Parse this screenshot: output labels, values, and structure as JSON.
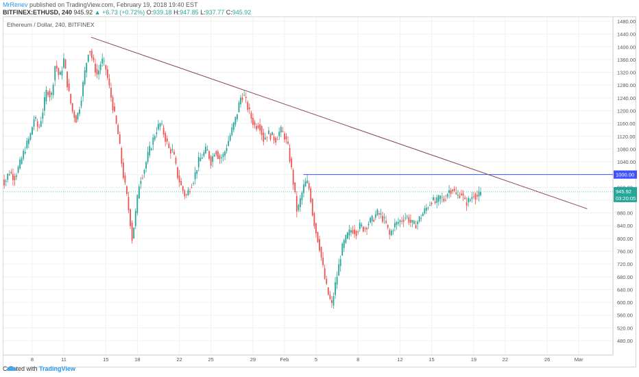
{
  "header": {
    "author": "MrRenev",
    "published": "published on TradingView.com, February 19, 2018 19:40 EST",
    "symbol": "BITFINEX:ETHUSD, 240",
    "last": "945.92",
    "change": "+6.73 (+0.72%)",
    "o_label": "O:",
    "o": "939.18",
    "h_label": "H:",
    "h": "947.85",
    "l_label": "L:",
    "l": "937.77",
    "c_label": "C:",
    "c": "945.92"
  },
  "chart_title": "Ethereum / Dollar, 240, BITFINEX",
  "footer": {
    "created_with": "Created with",
    "brand": "TradingView"
  },
  "colors": {
    "up": "#26a69a",
    "down": "#ef5350",
    "trendline": "#8b4545",
    "resistance": "#3f51ff",
    "price": "#26a69a"
  },
  "chart_data": {
    "type": "candlestick",
    "y_axis": {
      "min": 480,
      "max": 1480,
      "step": 40,
      "ticks": [
        "1480.00",
        "1440.00",
        "1400.00",
        "1360.00",
        "1320.00",
        "1280.00",
        "1240.00",
        "1200.00",
        "1160.00",
        "1120.00",
        "1080.00",
        "1040.00",
        "1000.00",
        "960.00",
        "920.00",
        "880.00",
        "840.00",
        "800.00",
        "760.00",
        "720.00",
        "680.00",
        "640.00",
        "600.00",
        "560.00",
        "520.00",
        "480.00"
      ]
    },
    "x_axis": {
      "labels": [
        {
          "day": 8,
          "text": "8"
        },
        {
          "day": 11,
          "text": "11"
        },
        {
          "day": 15,
          "text": "15"
        },
        {
          "day": 18,
          "text": "18"
        },
        {
          "day": 22,
          "text": "22"
        },
        {
          "day": 25,
          "text": "25"
        },
        {
          "day": 29,
          "text": "29"
        },
        {
          "day": 32,
          "text": "Feb"
        },
        {
          "day": 35,
          "text": "5"
        },
        {
          "day": 39,
          "text": "8"
        },
        {
          "day": 43,
          "text": "12"
        },
        {
          "day": 46,
          "text": "15"
        },
        {
          "day": 50,
          "text": "19"
        },
        {
          "day": 53,
          "text": "22"
        },
        {
          "day": 57,
          "text": "26"
        },
        {
          "day": 60,
          "text": "Mar"
        }
      ]
    },
    "price_path": [
      [
        5.0,
        990
      ],
      [
        5.4,
        975
      ],
      [
        5.8,
        1010
      ],
      [
        6.3,
        990
      ],
      [
        6.8,
        1030
      ],
      [
        7.3,
        1080
      ],
      [
        7.8,
        1120
      ],
      [
        8.2,
        1180
      ],
      [
        8.6,
        1140
      ],
      [
        9.0,
        1200
      ],
      [
        9.4,
        1270
      ],
      [
        9.8,
        1240
      ],
      [
        10.2,
        1350
      ],
      [
        10.6,
        1300
      ],
      [
        11.0,
        1360
      ],
      [
        11.4,
        1270
      ],
      [
        11.8,
        1200
      ],
      [
        12.2,
        1170
      ],
      [
        12.6,
        1230
      ],
      [
        13.0,
        1320
      ],
      [
        13.4,
        1400
      ],
      [
        13.8,
        1350
      ],
      [
        14.2,
        1310
      ],
      [
        14.6,
        1360
      ],
      [
        15.0,
        1330
      ],
      [
        15.4,
        1260
      ],
      [
        15.8,
        1190
      ],
      [
        16.2,
        1120
      ],
      [
        16.6,
        1010
      ],
      [
        17.0,
        930
      ],
      [
        17.3,
        860
      ],
      [
        17.5,
        800
      ],
      [
        17.8,
        870
      ],
      [
        18.2,
        980
      ],
      [
        18.6,
        1010
      ],
      [
        19.0,
        1060
      ],
      [
        19.4,
        1100
      ],
      [
        19.8,
        1140
      ],
      [
        20.2,
        1160
      ],
      [
        20.6,
        1120
      ],
      [
        21.0,
        1080
      ],
      [
        21.4,
        1070
      ],
      [
        21.8,
        1000
      ],
      [
        22.2,
        960
      ],
      [
        22.6,
        930
      ],
      [
        23.0,
        960
      ],
      [
        23.4,
        990
      ],
      [
        23.8,
        1040
      ],
      [
        24.2,
        1060
      ],
      [
        24.6,
        1080
      ],
      [
        25.0,
        1040
      ],
      [
        25.4,
        1080
      ],
      [
        25.8,
        1050
      ],
      [
        26.2,
        1060
      ],
      [
        26.6,
        1100
      ],
      [
        27.0,
        1140
      ],
      [
        27.4,
        1180
      ],
      [
        27.8,
        1240
      ],
      [
        28.1,
        1250
      ],
      [
        28.4,
        1220
      ],
      [
        28.8,
        1180
      ],
      [
        29.2,
        1150
      ],
      [
        29.6,
        1160
      ],
      [
        30.0,
        1110
      ],
      [
        30.4,
        1130
      ],
      [
        30.8,
        1120
      ],
      [
        31.2,
        1110
      ],
      [
        31.6,
        1140
      ],
      [
        32.0,
        1120
      ],
      [
        32.3,
        1090
      ],
      [
        32.6,
        1030
      ],
      [
        32.9,
        960
      ],
      [
        33.2,
        880
      ],
      [
        33.5,
        920
      ],
      [
        33.8,
        960
      ],
      [
        34.1,
        980
      ],
      [
        34.4,
        950
      ],
      [
        34.7,
        870
      ],
      [
        35.0,
        820
      ],
      [
        35.3,
        780
      ],
      [
        35.6,
        720
      ],
      [
        35.9,
        660
      ],
      [
        36.2,
        620
      ],
      [
        36.5,
        590
      ],
      [
        36.8,
        650
      ],
      [
        37.1,
        700
      ],
      [
        37.4,
        760
      ],
      [
        37.7,
        790
      ],
      [
        38.0,
        810
      ],
      [
        38.4,
        830
      ],
      [
        38.8,
        820
      ],
      [
        39.2,
        840
      ],
      [
        39.6,
        830
      ],
      [
        40.0,
        850
      ],
      [
        40.4,
        860
      ],
      [
        40.8,
        880
      ],
      [
        41.2,
        870
      ],
      [
        41.6,
        850
      ],
      [
        42.0,
        810
      ],
      [
        42.4,
        840
      ],
      [
        42.8,
        850
      ],
      [
        43.2,
        860
      ],
      [
        43.6,
        870
      ],
      [
        44.0,
        850
      ],
      [
        44.4,
        840
      ],
      [
        44.8,
        860
      ],
      [
        45.2,
        880
      ],
      [
        45.6,
        900
      ],
      [
        46.0,
        920
      ],
      [
        46.4,
        910
      ],
      [
        46.8,
        930
      ],
      [
        47.2,
        920
      ],
      [
        47.6,
        950
      ],
      [
        48.0,
        955
      ],
      [
        48.4,
        930
      ],
      [
        48.8,
        945
      ],
      [
        49.2,
        910
      ],
      [
        49.6,
        920
      ],
      [
        50.0,
        940
      ],
      [
        50.4,
        930
      ],
      [
        50.7,
        945.92
      ]
    ],
    "trendline": {
      "from": [
        13.6,
        1430
      ],
      "to": [
        60.8,
        893
      ]
    },
    "resistance": {
      "value": 1000,
      "from_day": 33.8,
      "label": "1000.00"
    },
    "last_price": {
      "value": 945.92,
      "label": "945.92",
      "countdown": "03:20:05"
    }
  }
}
